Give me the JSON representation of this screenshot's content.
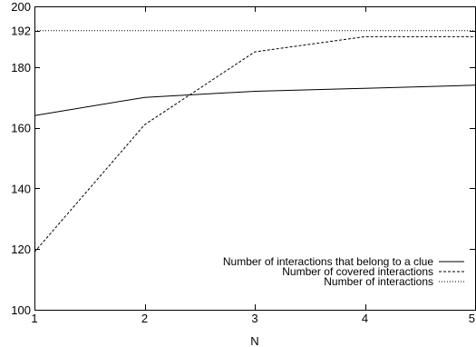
{
  "chart_data": {
    "type": "line",
    "title": "",
    "xlabel": "N",
    "ylabel": "",
    "xlim": [
      1,
      5
    ],
    "ylim": [
      100,
      200
    ],
    "x_ticks": [
      1,
      2,
      3,
      4,
      5
    ],
    "y_ticks": [
      100,
      120,
      140,
      160,
      180,
      192,
      200
    ],
    "grid": false,
    "legend_position": "bottom-right",
    "series": [
      {
        "name": "Number of interactions that belong to a clue",
        "style": "solid",
        "x": [
          1,
          2,
          3,
          4,
          5
        ],
        "y": [
          164,
          170,
          172,
          173,
          174
        ]
      },
      {
        "name": "Number of covered interactions",
        "style": "dashed",
        "x": [
          1,
          2,
          3,
          4,
          5
        ],
        "y": [
          119,
          161,
          185,
          190,
          190
        ]
      },
      {
        "name": "Number of interactions",
        "style": "dotted",
        "x": [
          1,
          2,
          3,
          4,
          5
        ],
        "y": [
          192,
          192,
          192,
          192,
          192
        ]
      }
    ]
  }
}
